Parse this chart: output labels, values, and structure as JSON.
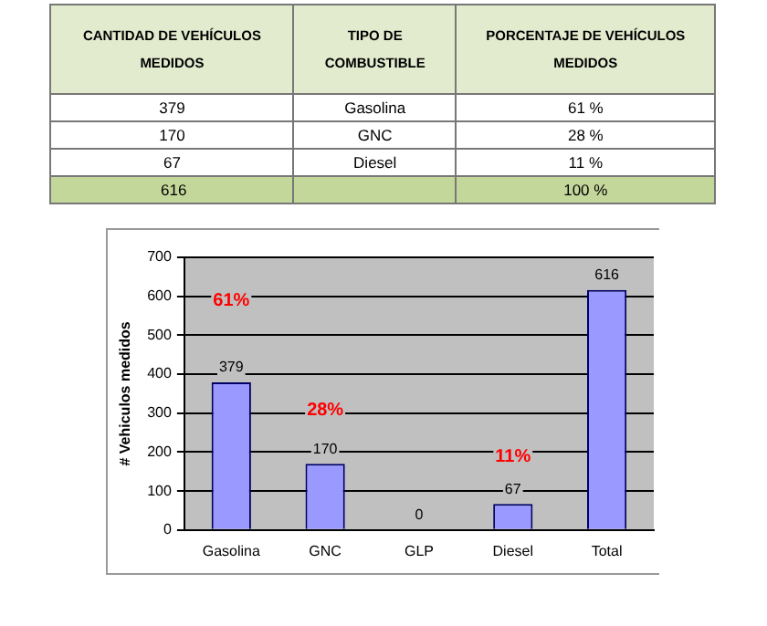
{
  "chart_data": [
    {
      "type": "other",
      "annotations": [
        "CANTIDAD DE VEHÍCULOS MEDIDOS",
        "TIPO DE COMBUSTIBLE",
        "PORCENTAJE DE VEHÍCULOS MEDIDOS",
        "379",
        "Gasolina",
        "61 %",
        "170",
        "GNC",
        "28 %",
        "67",
        "Diesel",
        "11 %",
        "616",
        "100 %"
      ]
    },
    {
      "type": "bar",
      "ylabel": "# Vehiculos medidos",
      "categories": [
        "Gasolina",
        "GNC",
        "GLP",
        "Diesel",
        "Total"
      ],
      "values": [
        379,
        170,
        0,
        67,
        616
      ],
      "color": "#9999ff",
      "data_labels": true,
      "ylim": [
        0,
        700
      ],
      "yticks": [
        0,
        100,
        200,
        300,
        400,
        500,
        600,
        700
      ],
      "grid": "y",
      "legend": false,
      "annotations": [
        "61%",
        "28%",
        "11%"
      ]
    }
  ]
}
